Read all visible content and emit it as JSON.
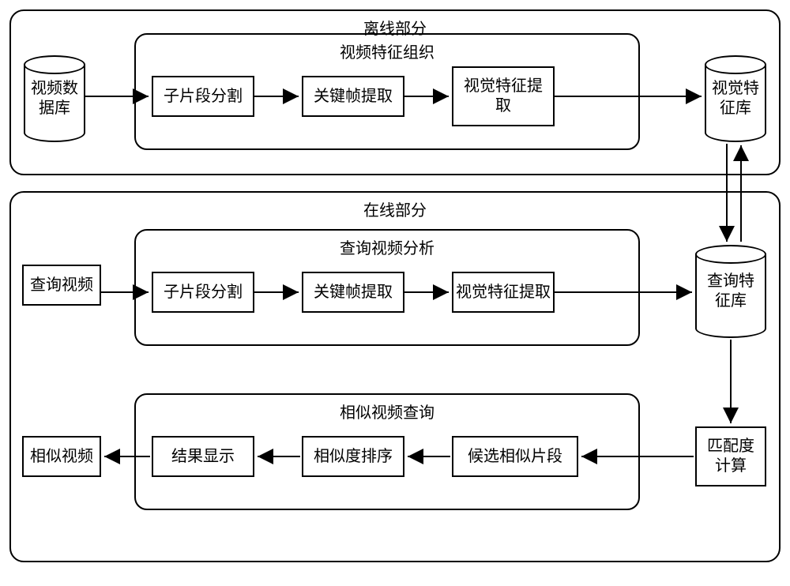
{
  "colors": {
    "line": "#000000",
    "bg": "#ffffff"
  },
  "font": {
    "size_pt": 20,
    "family": "SimSun"
  },
  "offline": {
    "title": "离线部分",
    "db_in": "视频数\n据库",
    "inner_title": "视频特征组织",
    "steps": {
      "seg": "子片段分割",
      "kf": "关键帧提取",
      "vf": "视觉特征提\n取"
    },
    "db_out": "视觉特\n征库"
  },
  "online": {
    "title": "在线部分",
    "query_video": "查询视频",
    "inner1_title": "查询视频分析",
    "steps1": {
      "seg": "子片段分割",
      "kf": "关键帧提取",
      "vf": "视觉特征提取"
    },
    "db_query": "查询特\n征库",
    "inner2_title": "相似视频查询",
    "sim_video": "相似视频",
    "steps2": {
      "res": "结果显示",
      "sort": "相似度排序",
      "cand": "候选相似片段"
    },
    "match": "匹配度\n计算"
  },
  "diagram": {
    "type": "flowchart",
    "node_border": "#000000",
    "node_fill": "#ffffff",
    "panel_border_radius": 18,
    "box_border_width": 2,
    "arrow_head": 10
  }
}
